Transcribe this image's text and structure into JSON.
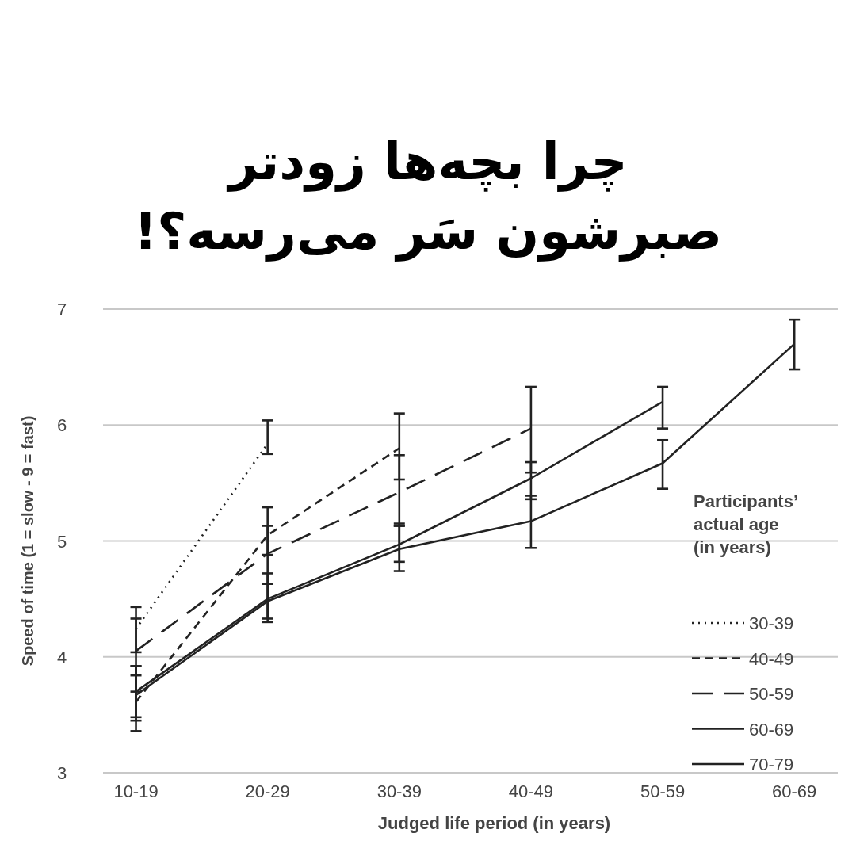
{
  "chart_data": {
    "type": "line",
    "title": "چرا بچه‌ها زودتر صبرشون سَر می‌رسه؟!",
    "xlabel": "Judged life period (in years)",
    "ylabel": "Speed of time (1 = slow - 9 = fast)",
    "legend_title": "Participants’ actual age (in years)",
    "categories": [
      "10-19",
      "20-29",
      "30-39",
      "40-49",
      "50-59",
      "60-69"
    ],
    "ylim": [
      3,
      7
    ],
    "yticks": [
      3,
      4,
      5,
      6,
      7
    ],
    "grid": "y",
    "legend": "right",
    "marker": "none",
    "series": [
      {
        "name": "30-39",
        "color": "#222222",
        "line_style": "dotted",
        "values": [
          4.24,
          5.84,
          null,
          null,
          null,
          null
        ],
        "errors": [
          [
            4.04,
            4.43
          ],
          [
            5.75,
            6.04
          ],
          null,
          null,
          null,
          null
        ]
      },
      {
        "name": "40-49",
        "color": "#222222",
        "line_style": "dashed",
        "values": [
          3.61,
          5.05,
          5.8,
          null,
          null,
          null
        ],
        "errors": [
          [
            3.36,
            3.84
          ],
          [
            4.88,
            5.29
          ],
          [
            5.53,
            6.1
          ],
          null,
          null,
          null
        ]
      },
      {
        "name": "50-59",
        "color": "#222222",
        "line_style": "dashed",
        "values": [
          4.05,
          4.89,
          5.42,
          5.97,
          null,
          null
        ],
        "errors": [
          [
            3.7,
            4.33
          ],
          [
            4.63,
            5.13
          ],
          [
            5.13,
            5.74
          ],
          [
            5.59,
            6.33
          ],
          null,
          null
        ]
      },
      {
        "name": "60-69",
        "color": "#222222",
        "line_style": "solid",
        "values": [
          3.7,
          4.5,
          4.97,
          5.54,
          6.2,
          null
        ],
        "errors": [
          [
            3.48,
            3.92
          ],
          [
            4.3,
            4.72
          ],
          [
            4.82,
            5.15
          ],
          [
            5.36,
            5.68
          ],
          [
            5.97,
            6.33
          ],
          null
        ]
      },
      {
        "name": "70-79",
        "color": "#222222",
        "line_style": "solid",
        "values": [
          3.67,
          4.48,
          4.93,
          5.17,
          5.67,
          6.7
        ],
        "errors": [
          [
            3.45,
            3.92
          ],
          [
            4.33,
            4.63
          ],
          [
            4.74,
            5.13
          ],
          [
            4.94,
            5.39
          ],
          [
            5.45,
            5.87
          ],
          [
            6.48,
            6.91
          ]
        ]
      }
    ]
  }
}
